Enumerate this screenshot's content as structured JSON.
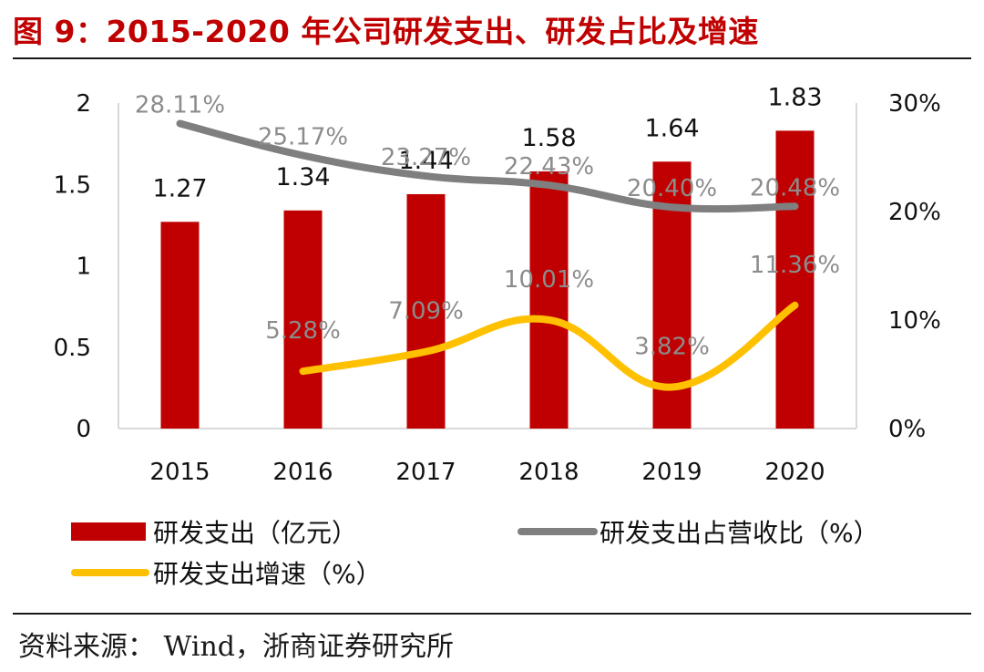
{
  "title": "图 9：2015-2020 年公司研发支出、研发占比及增速",
  "source": "资料来源： Wind，浙商证券研究所",
  "colors": {
    "bar": "#c00000",
    "ratio_line": "#7f7f7f",
    "growth_line": "#ffc000",
    "title": "#c00000",
    "grid": "#d9d9d9"
  },
  "chart_data": {
    "type": "bar",
    "categories": [
      "2015",
      "2016",
      "2017",
      "2018",
      "2019",
      "2020"
    ],
    "series": [
      {
        "name": "研发支出（亿元）",
        "type": "bar",
        "axis": "left",
        "values": [
          1.27,
          1.34,
          1.44,
          1.58,
          1.64,
          1.83
        ],
        "labels": [
          "1.27",
          "1.34",
          "1.44",
          "1.58",
          "1.64",
          "1.83"
        ]
      },
      {
        "name": "研发支出占营收比（%）",
        "type": "line",
        "axis": "right",
        "values": [
          28.11,
          25.17,
          23.27,
          22.43,
          20.4,
          20.48
        ],
        "labels": [
          "28.11%",
          "25.17%",
          "23.27%",
          "22.43%",
          "20.40%",
          "20.48%"
        ]
      },
      {
        "name": "研发支出增速（%）",
        "type": "line",
        "axis": "right",
        "values": [
          null,
          5.28,
          7.09,
          10.01,
          3.82,
          11.36
        ],
        "labels": [
          "",
          "5.28%",
          "7.09%",
          "10.01%",
          "3.82%",
          "11.36%"
        ]
      }
    ],
    "y_left": {
      "range": [
        0,
        2
      ],
      "ticks": [
        0,
        0.5,
        1,
        1.5,
        2
      ],
      "tick_labels": [
        "0",
        "0.5",
        "1",
        "1.5",
        "2"
      ]
    },
    "y_right": {
      "range": [
        0,
        30
      ],
      "ticks": [
        0,
        10,
        20,
        30
      ],
      "tick_labels": [
        "0%",
        "10%",
        "20%",
        "30%"
      ]
    },
    "legend": [
      {
        "label": "研发支出（亿元）",
        "kind": "bar"
      },
      {
        "label": "研发支出占营收比（%）",
        "kind": "ratio"
      },
      {
        "label": "研发支出增速（%）",
        "kind": "growth"
      }
    ],
    "legend_position": "bottom",
    "grid": false
  }
}
